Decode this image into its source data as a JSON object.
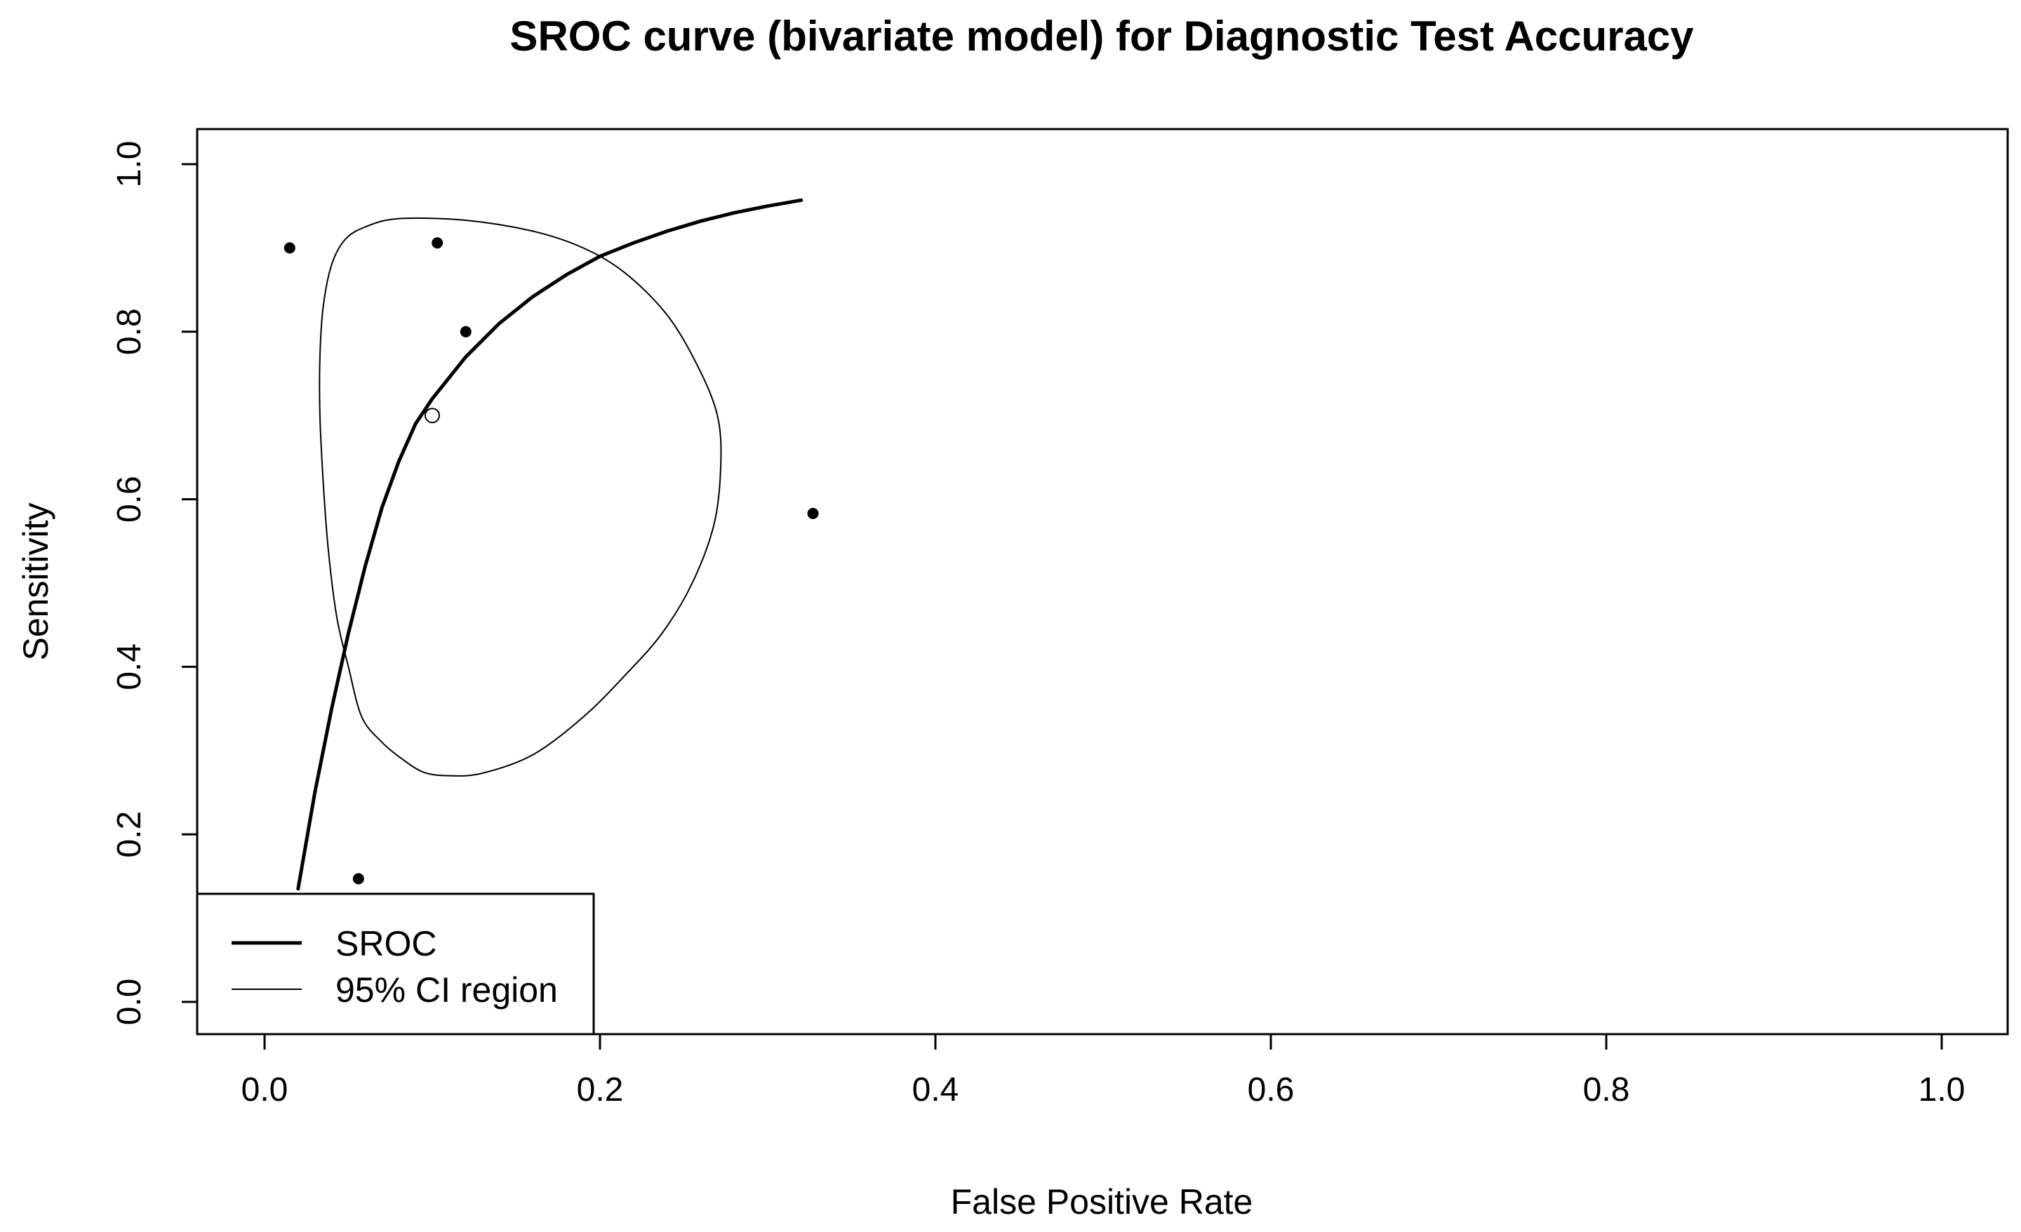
{
  "chart_data": {
    "type": "scatter",
    "title": "SROC curve (bivariate model) for Diagnostic Test Accuracy",
    "xlabel": "False Positive Rate",
    "ylabel": "Sensitivity",
    "xlim": [
      0,
      1
    ],
    "ylim": [
      0,
      1
    ],
    "xticks": [
      0.0,
      0.2,
      0.4,
      0.6,
      0.8,
      1.0
    ],
    "yticks": [
      0.0,
      0.2,
      0.4,
      0.6,
      0.8,
      1.0
    ],
    "xtick_labels": [
      "0.0",
      "0.2",
      "0.4",
      "0.6",
      "0.8",
      "1.0"
    ],
    "ytick_labels": [
      "0.0",
      "0.2",
      "0.4",
      "0.6",
      "0.8",
      "1.0"
    ],
    "studies": {
      "x": [
        0.015,
        0.103,
        0.12,
        0.327,
        0.056
      ],
      "y": [
        0.9,
        0.906,
        0.8,
        0.583,
        0.147
      ]
    },
    "summary_point": {
      "x": 0.1,
      "y": 0.7
    },
    "sroc_curve": {
      "name": "SROC",
      "x": [
        0.02,
        0.03,
        0.04,
        0.05,
        0.06,
        0.07,
        0.08,
        0.09,
        0.1,
        0.12,
        0.14,
        0.16,
        0.18,
        0.2,
        0.22,
        0.24,
        0.26,
        0.28,
        0.3,
        0.32
      ],
      "y": [
        0.135,
        0.25,
        0.35,
        0.44,
        0.52,
        0.59,
        0.645,
        0.69,
        0.72,
        0.77,
        0.81,
        0.842,
        0.868,
        0.89,
        0.906,
        0.92,
        0.932,
        0.942,
        0.95,
        0.957
      ]
    },
    "confidence_region": {
      "name": "95% CI region",
      "x": [
        0.08,
        0.12,
        0.16,
        0.19,
        0.215,
        0.24,
        0.258,
        0.27,
        0.272,
        0.268,
        0.255,
        0.237,
        0.215,
        0.19,
        0.16,
        0.13,
        0.11,
        0.095,
        0.082,
        0.07,
        0.058,
        0.05,
        0.043,
        0.038,
        0.035,
        0.033,
        0.033,
        0.035,
        0.04,
        0.048,
        0.06,
        0.08
      ],
      "y": [
        0.935,
        0.933,
        0.92,
        0.9,
        0.87,
        0.82,
        0.76,
        0.7,
        0.64,
        0.57,
        0.5,
        0.44,
        0.39,
        0.34,
        0.295,
        0.273,
        0.27,
        0.274,
        0.29,
        0.31,
        0.34,
        0.4,
        0.46,
        0.54,
        0.62,
        0.7,
        0.77,
        0.83,
        0.88,
        0.91,
        0.925,
        0.935
      ]
    },
    "legend": {
      "position": "bottom-left",
      "entries": [
        {
          "label": "SROC",
          "style": "thick"
        },
        {
          "label": "95% CI region",
          "style": "thin"
        }
      ]
    },
    "colors": {
      "line": "#000000",
      "background": "#ffffff"
    }
  }
}
